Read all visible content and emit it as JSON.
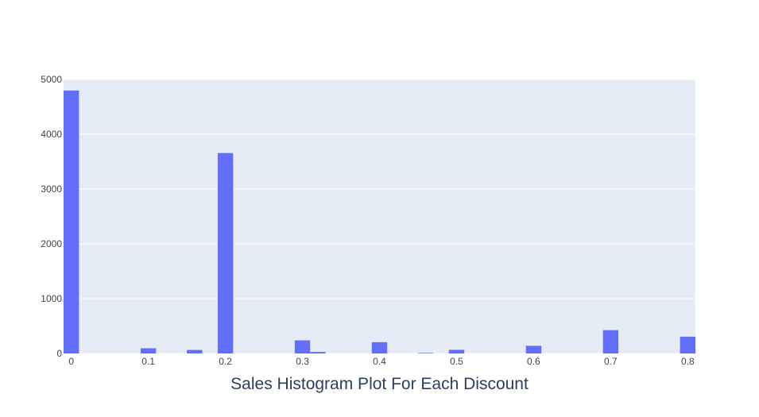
{
  "chart_data": {
    "type": "bar",
    "xlabel": "Sales Histogram Plot For Each Discount",
    "ylabel": "",
    "xlim": [
      -0.01,
      0.81
    ],
    "ylim": [
      0,
      5000
    ],
    "grid": true,
    "bar_color": "#636efa",
    "plot_bg": "#e5ecf6",
    "bin_width": 0.02,
    "x_ticks": [
      0,
      0.1,
      0.2,
      0.3,
      0.4,
      0.5,
      0.6,
      0.7,
      0.8
    ],
    "x_tick_labels": [
      "0",
      "0.1",
      "0.2",
      "0.3",
      "0.4",
      "0.5",
      "0.6",
      "0.7",
      "0.8"
    ],
    "y_ticks": [
      0,
      1000,
      2000,
      3000,
      4000,
      5000
    ],
    "y_tick_labels": [
      "0",
      "1000",
      "2000",
      "3000",
      "4000",
      "5000"
    ],
    "bins": [
      {
        "x": 0.0,
        "count": 4798
      },
      {
        "x": 0.1,
        "count": 94
      },
      {
        "x": 0.16,
        "count": 64
      },
      {
        "x": 0.2,
        "count": 3657
      },
      {
        "x": 0.3,
        "count": 239
      },
      {
        "x": 0.32,
        "count": 27
      },
      {
        "x": 0.4,
        "count": 206
      },
      {
        "x": 0.46,
        "count": 9
      },
      {
        "x": 0.5,
        "count": 66
      },
      {
        "x": 0.6,
        "count": 140
      },
      {
        "x": 0.7,
        "count": 425
      },
      {
        "x": 0.8,
        "count": 306
      }
    ]
  }
}
